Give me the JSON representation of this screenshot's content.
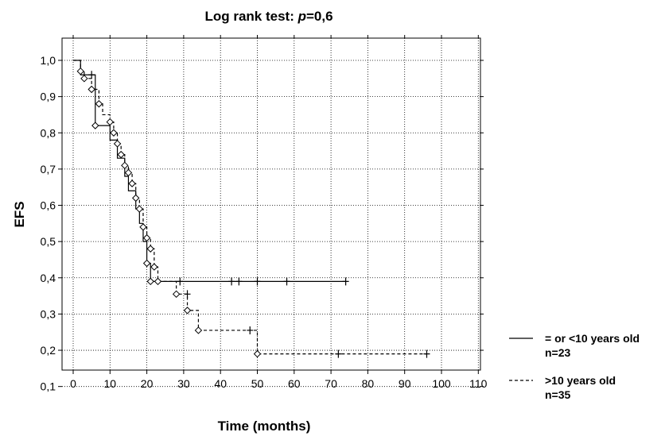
{
  "chart_data": {
    "type": "line",
    "title": "Log rank test: p=0,6",
    "title_parts": {
      "prefix": "Log rank test: ",
      "italic": "p",
      "suffix": "=0,6"
    },
    "xlabel": "Time (months)",
    "ylabel": "EFS",
    "xlim": [
      0,
      110
    ],
    "ylim": [
      0.1,
      1.0
    ],
    "x_ticks": [
      0,
      10,
      20,
      30,
      40,
      50,
      60,
      70,
      80,
      90,
      100,
      110
    ],
    "x_tick_labels": [
      "0",
      "10",
      "20",
      "30",
      "40",
      "50",
      "60",
      "70",
      "80",
      "90",
      "100",
      "110"
    ],
    "y_ticks": [
      0.1,
      0.2,
      0.3,
      0.4,
      0.5,
      0.6,
      0.7,
      0.8,
      0.9,
      1.0
    ],
    "y_tick_labels": [
      "0,1",
      "0,2",
      "0,3",
      "0,4",
      "0,5",
      "0,6",
      "0,7",
      "0,8",
      "0,9",
      "1,0"
    ],
    "grid": true,
    "legend_position": "bottom-right outside",
    "series": [
      {
        "name": "= or <10 years old",
        "n_label": "n=23",
        "style": "solid",
        "color": "#000000",
        "steps": [
          [
            0,
            1.0
          ],
          [
            2,
            0.96
          ],
          [
            6,
            0.91
          ],
          [
            6,
            0.82
          ],
          [
            9,
            0.82
          ],
          [
            10,
            0.78
          ],
          [
            12,
            0.73
          ],
          [
            14,
            0.68
          ],
          [
            15,
            0.64
          ],
          [
            17,
            0.59
          ],
          [
            18,
            0.55
          ],
          [
            19,
            0.5
          ],
          [
            20,
            0.44
          ],
          [
            21,
            0.39
          ],
          [
            74,
            0.39
          ]
        ],
        "events": [
          [
            6,
            0.82
          ],
          [
            20,
            0.44
          ],
          [
            21,
            0.39
          ]
        ],
        "censored": [
          [
            5,
            0.96
          ],
          [
            29,
            0.39
          ],
          [
            43,
            0.39
          ],
          [
            45,
            0.39
          ],
          [
            50,
            0.39
          ],
          [
            58,
            0.39
          ],
          [
            74,
            0.39
          ]
        ]
      },
      {
        "name": ">10 years old",
        "n_label": "n=35",
        "style": "dashed",
        "color": "#000000",
        "steps": [
          [
            0,
            1.0
          ],
          [
            2,
            0.97
          ],
          [
            3,
            0.95
          ],
          [
            5,
            0.92
          ],
          [
            7,
            0.88
          ],
          [
            8,
            0.85
          ],
          [
            10,
            0.83
          ],
          [
            11,
            0.8
          ],
          [
            12,
            0.77
          ],
          [
            13,
            0.74
          ],
          [
            14,
            0.71
          ],
          [
            15,
            0.69
          ],
          [
            16,
            0.66
          ],
          [
            17,
            0.62
          ],
          [
            18,
            0.59
          ],
          [
            19,
            0.54
          ],
          [
            20,
            0.51
          ],
          [
            21,
            0.48
          ],
          [
            22,
            0.43
          ],
          [
            23,
            0.39
          ],
          [
            28,
            0.355
          ],
          [
            31,
            0.31
          ],
          [
            34,
            0.255
          ],
          [
            49,
            0.255
          ],
          [
            50,
            0.19
          ],
          [
            96,
            0.19
          ]
        ],
        "events": [
          [
            2,
            0.97
          ],
          [
            3,
            0.95
          ],
          [
            5,
            0.92
          ],
          [
            7,
            0.88
          ],
          [
            10,
            0.83
          ],
          [
            11,
            0.8
          ],
          [
            12,
            0.77
          ],
          [
            13,
            0.74
          ],
          [
            14,
            0.71
          ],
          [
            15,
            0.69
          ],
          [
            16,
            0.66
          ],
          [
            17,
            0.62
          ],
          [
            18,
            0.59
          ],
          [
            19,
            0.54
          ],
          [
            20,
            0.51
          ],
          [
            21,
            0.48
          ],
          [
            22,
            0.43
          ],
          [
            23,
            0.39
          ],
          [
            28,
            0.355
          ],
          [
            31,
            0.31
          ],
          [
            34,
            0.255
          ],
          [
            50,
            0.19
          ]
        ],
        "censored": [
          [
            31,
            0.355
          ],
          [
            48,
            0.255
          ],
          [
            72,
            0.19
          ],
          [
            96,
            0.19
          ]
        ]
      }
    ]
  }
}
